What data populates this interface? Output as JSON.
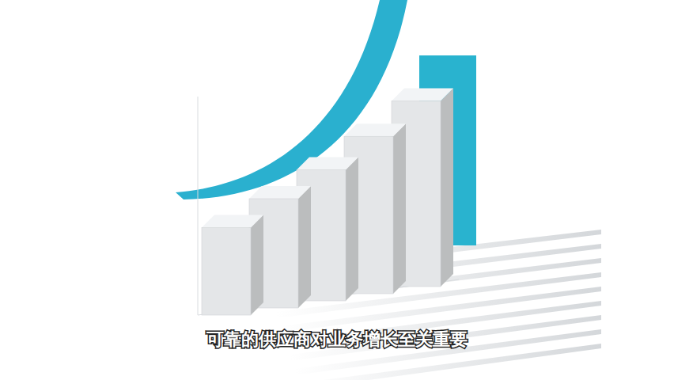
{
  "chart_data": {
    "type": "bar",
    "subtitle": "可靠的供应商对业务增长至关重要",
    "categories": [
      null,
      null,
      null,
      null,
      null
    ],
    "values": [
      40,
      50,
      60,
      72,
      85
    ],
    "color": "#e4e6e8",
    "ylim": [
      0,
      100
    ],
    "tick_labels": false,
    "grid": false
  }
}
